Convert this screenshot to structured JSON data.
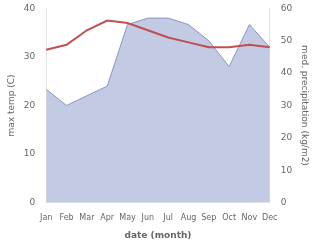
{
  "chart_data": {
    "type": "line",
    "xlabel": "date (month)",
    "ylabel": "max temp (C)",
    "y2label": "med. precipitation (kg/m2)",
    "categories": [
      "Jan",
      "Feb",
      "Mar",
      "Apr",
      "May",
      "Jun",
      "Jul",
      "Aug",
      "Sep",
      "Oct",
      "Nov",
      "Dec"
    ],
    "series": [
      {
        "type": "line",
        "color": "#c0504d",
        "values": [
          31.5,
          32.5,
          35.5,
          37.5,
          37.0,
          35.5,
          34.0,
          33.0,
          32.0,
          32.0,
          32.5,
          32.0
        ]
      },
      {
        "type": "area",
        "color": "#8896c8",
        "axis": "y2",
        "values": [
          35,
          30,
          33,
          36,
          55,
          57,
          57,
          55,
          50,
          42,
          55,
          48
        ]
      }
    ],
    "ylim": [
      0,
      40
    ],
    "yticks": [
      0,
      10,
      20,
      30,
      40
    ],
    "y2lim": [
      0,
      60
    ],
    "y2ticks": [
      0,
      10,
      20,
      30,
      40,
      50,
      60
    ],
    "grid": false
  }
}
